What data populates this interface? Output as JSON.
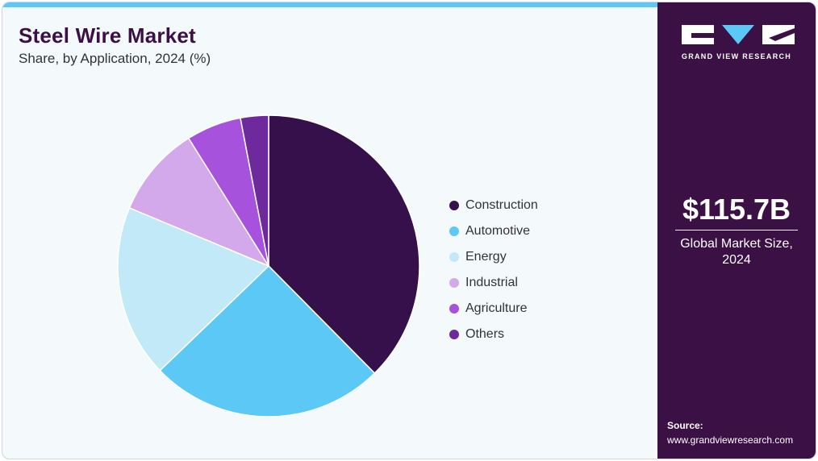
{
  "header": {
    "title": "Steel Wire Market",
    "subtitle": "Share, by Application, 2024 (%)"
  },
  "chart_data": {
    "type": "pie",
    "title": "Steel Wire Market",
    "subtitle": "Share, by Application, 2024 (%)",
    "categories": [
      "Construction",
      "Automotive",
      "Energy",
      "Industrial",
      "Agriculture",
      "Others"
    ],
    "values": [
      37.6,
      25.2,
      18.5,
      9.8,
      5.9,
      3.0
    ],
    "colors": [
      "#36104a",
      "#5bc8f5",
      "#c1e9f8",
      "#d4a9eb",
      "#a652dd",
      "#6e2a9c"
    ],
    "legend_position": "right"
  },
  "sidebar": {
    "brand": "GRAND VIEW RESEARCH",
    "market_size": "$115.7B",
    "market_caption_line1": "Global Market Size,",
    "market_caption_line2": "2024",
    "source_label": "Source:",
    "source_url": "www.grandviewresearch.com",
    "colors": {
      "background": "#3a1045",
      "accent": "#5bc8f5"
    }
  }
}
